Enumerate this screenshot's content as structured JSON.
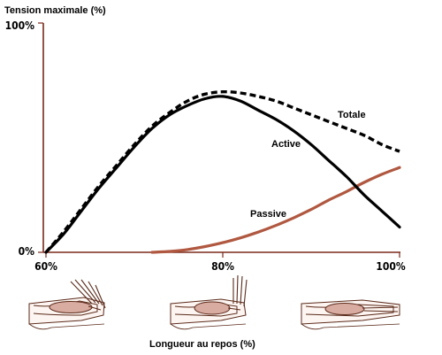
{
  "chart_data": {
    "type": "line",
    "ylabel": "Tension maximale (%)",
    "xlabel": "Longueur au repos (%)",
    "x_ticks": [
      "60%",
      "80%",
      "100%"
    ],
    "y_ticks": [
      "0%",
      "100%"
    ],
    "xlim": [
      60,
      100
    ],
    "ylim": [
      0,
      100
    ],
    "grid": false,
    "series": [
      {
        "name": "Totale",
        "style": "dashed",
        "color": "#000000",
        "x": [
          60,
          62,
          64,
          66,
          68,
          70,
          72,
          74,
          76,
          78,
          80,
          82,
          84,
          86,
          88,
          90,
          92,
          94,
          96,
          98,
          100
        ],
        "y": [
          0,
          9,
          19,
          29,
          38,
          47,
          55,
          61,
          66,
          69,
          70,
          69.5,
          68,
          66,
          63,
          60,
          57,
          54,
          51,
          47,
          44
        ]
      },
      {
        "name": "Active",
        "style": "solid",
        "color": "#000000",
        "x": [
          60,
          62,
          64,
          66,
          68,
          70,
          72,
          74,
          76,
          78,
          80,
          82,
          84,
          86,
          88,
          90,
          92,
          94,
          96,
          98,
          100
        ],
        "y": [
          0,
          8,
          18,
          28,
          37,
          46,
          54,
          60,
          64,
          67,
          68,
          66,
          62,
          58,
          53,
          47,
          40,
          33,
          25,
          18,
          11
        ]
      },
      {
        "name": "Passive",
        "style": "solid",
        "color": "#b05840",
        "x": [
          72,
          74,
          76,
          78,
          80,
          82,
          84,
          86,
          88,
          90,
          92,
          94,
          96,
          98,
          100
        ],
        "y": [
          0,
          0.4,
          1.2,
          2.5,
          4.2,
          6.3,
          8.8,
          11.7,
          15,
          18.7,
          22.8,
          26.5,
          30.5,
          34,
          37
        ]
      }
    ]
  },
  "colors": {
    "muscle": "#d9aca2",
    "skin": "#fdf5f1",
    "passive": "#b05840"
  }
}
